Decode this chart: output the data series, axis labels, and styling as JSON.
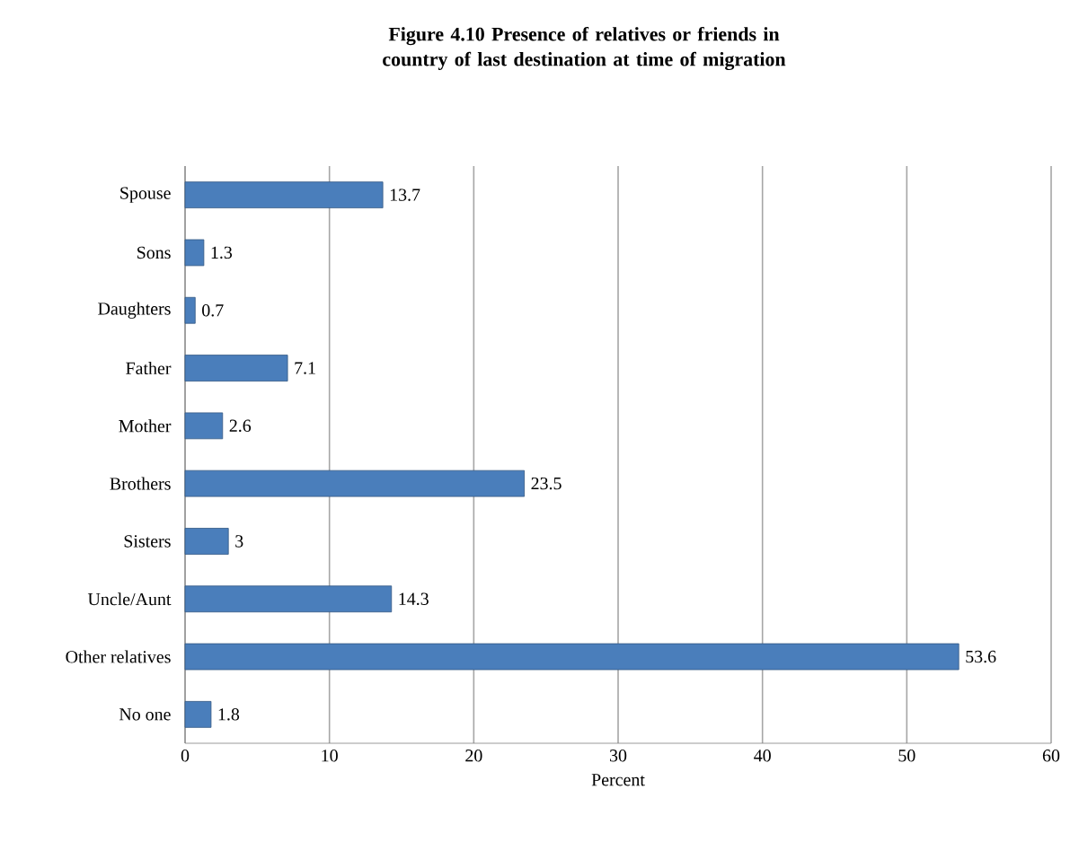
{
  "chart_data": {
    "type": "bar",
    "orientation": "horizontal",
    "title": "Figure 4.10   Presence of relatives or friends in country of last destination at time of migration",
    "xlabel": "Percent",
    "categories": [
      "Spouse",
      "Sons",
      "Daughters",
      "Father",
      "Mother",
      "Brothers",
      "Sisters",
      "Uncle/Aunt",
      "Other relatives",
      "No one"
    ],
    "values": [
      13.7,
      1.3,
      0.7,
      7.1,
      2.6,
      23.5,
      3,
      14.3,
      53.6,
      1.8
    ],
    "color": "#4a7ebb",
    "xlim": [
      0,
      60
    ],
    "xticks": [
      0,
      10,
      20,
      30,
      40,
      50,
      60
    ],
    "grid": "x",
    "data_labels": true
  }
}
